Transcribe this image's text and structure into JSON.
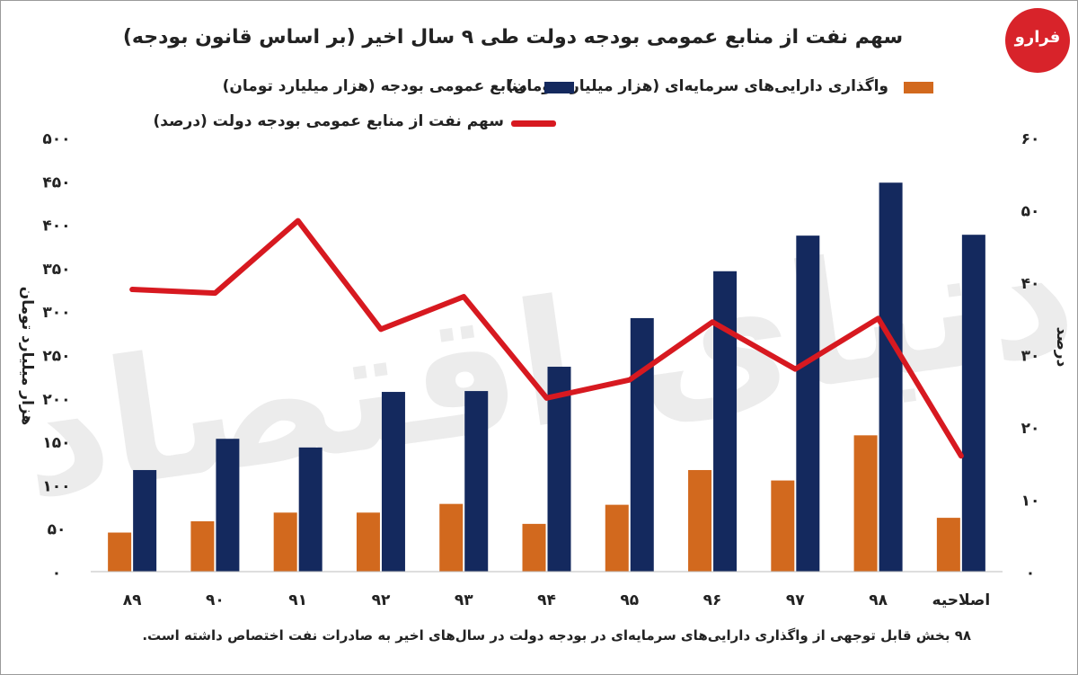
{
  "header": {
    "title": "سهم نفت از منابع  عمومی بودجه دولت طی ۹ سال اخیر (بر اساس قانون بودجه)"
  },
  "logo": {
    "text": "فرارو"
  },
  "watermark": {
    "text": "دنیای اقتصاد"
  },
  "footer": {
    "note": "بخش قابل توجهی از واگذاری دارایی‌های سرمایه‌ای در بودجه دولت در سال‌های اخیر به صادرات نفت اختصاص داشته است.",
    "note_year": "۹۸"
  },
  "chart_data": {
    "type": "bar",
    "categories": [
      "۸۹",
      "۹۰",
      "۹۱",
      "۹۲",
      "۹۳",
      "۹۴",
      "۹۵",
      "۹۶",
      "۹۷",
      "۹۸",
      "اصلاحیه"
    ],
    "series": [
      {
        "name": "واگذاری دارایی‌های سرمایه‌ای (هزار میلیارد تومان)",
        "kind": "bar",
        "axis": "left",
        "color": "#d2691e",
        "values": [
          45,
          58,
          68,
          68,
          78,
          55,
          77,
          117,
          105,
          157,
          62
        ]
      },
      {
        "name": "منابع عمومی بودجه  (هزار میلیارد تومان)",
        "kind": "bar",
        "axis": "left",
        "color": "#14295e",
        "values": [
          117,
          153,
          143,
          207,
          208,
          236,
          292,
          346,
          387,
          448,
          388
        ]
      },
      {
        "name": "سهم نفت از منابع عمومی بودجه دولت (درصد)",
        "kind": "line",
        "axis": "right",
        "color": "#d71920",
        "values": [
          39,
          38.5,
          48.5,
          33.5,
          38,
          24,
          26.5,
          34.5,
          28,
          35,
          16
        ]
      }
    ],
    "y_left": {
      "label": "هزار میلیارد تومان",
      "range": [
        0,
        500
      ],
      "ticks": [
        0,
        50,
        100,
        150,
        200,
        250,
        300,
        350,
        400,
        450,
        500
      ],
      "tick_labels": [
        "۰",
        "۵۰",
        "۱۰۰",
        "۱۵۰",
        "۲۰۰",
        "۲۵۰",
        "۳۰۰",
        "۳۵۰",
        "۴۰۰",
        "۴۵۰",
        "۵۰۰"
      ]
    },
    "y_right": {
      "label": "درصد",
      "range": [
        0,
        60
      ],
      "ticks": [
        0,
        10,
        20,
        30,
        40,
        50,
        60
      ],
      "tick_labels": [
        "۰",
        "۱۰",
        "۲۰",
        "۳۰",
        "۴۰",
        "۵۰",
        "۶۰"
      ]
    },
    "grid": false,
    "legend_position": "top"
  }
}
